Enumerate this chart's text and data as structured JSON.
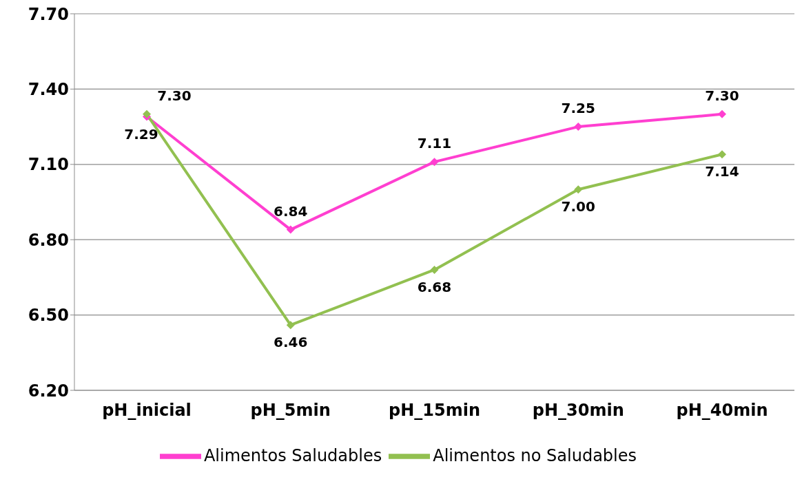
{
  "chart_data": {
    "type": "line",
    "categories": [
      "pH_inicial",
      "pH_5min",
      "pH_15min",
      "pH_30min",
      "pH_40min"
    ],
    "series": [
      {
        "name": "Alimentos Saludables",
        "color": "#ff3fd0",
        "values": [
          7.29,
          6.84,
          7.11,
          7.25,
          7.3
        ],
        "value_labels": [
          "7.29",
          "6.84",
          "7.11",
          "7.25",
          "7.30"
        ]
      },
      {
        "name": "Alimentos no Saludables",
        "color": "#92c050",
        "values": [
          7.3,
          6.46,
          6.68,
          7.0,
          7.14
        ],
        "value_labels": [
          "7.30",
          "6.46",
          "6.68",
          "7.00",
          "7.14"
        ]
      }
    ],
    "ylim": [
      6.2,
      7.7
    ],
    "yticks": [
      {
        "value": 6.2,
        "label": "6.20"
      },
      {
        "value": 6.5,
        "label": "6.50"
      },
      {
        "value": 6.8,
        "label": "6.80"
      },
      {
        "value": 7.1,
        "label": "7.10"
      },
      {
        "value": 7.4,
        "label": "7.40"
      },
      {
        "value": 7.7,
        "label": "7.70"
      }
    ],
    "grid": "y",
    "legend": "bottom",
    "marker": "diamond",
    "line_style": "solid"
  }
}
